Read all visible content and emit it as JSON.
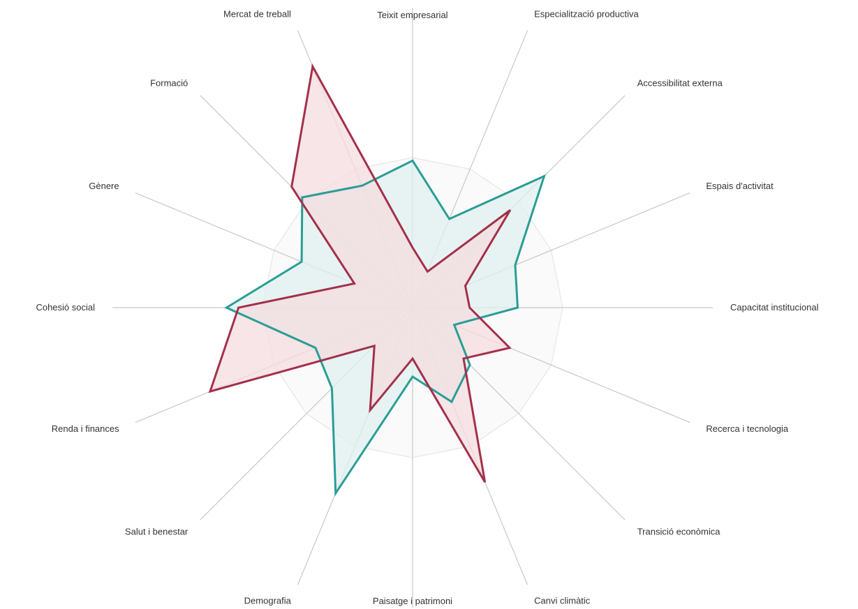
{
  "chart_data": {
    "type": "radar",
    "axes": [
      "Teixit empresarial",
      "Especialització productiva",
      "Accessibilitat externa",
      "Espais d'activitat",
      "Capacitat institucional",
      "Recerca i tecnologia",
      "Transició econòmica",
      "Canvi climàtic",
      "Paisatge i patrimoni",
      "Demografia",
      "Salut i benestar",
      "Renda i finances",
      "Cohesió social",
      "Gènere",
      "Formació",
      "Mercat de treball"
    ],
    "series": [
      {
        "values": [
          0.49,
          0.32,
          0.62,
          0.37,
          0.35,
          0.15,
          0.27,
          0.34,
          0.23,
          0.67,
          0.38,
          0.35,
          0.62,
          0.4,
          0.52,
          0.44
        ]
      },
      {
        "values": [
          0.2,
          0.13,
          0.46,
          0.19,
          0.19,
          0.35,
          0.24,
          0.63,
          0.17,
          0.37,
          0.18,
          0.73,
          0.58,
          0.21,
          0.57,
          0.87
        ]
      }
    ],
    "range": [
      0,
      1
    ],
    "grid_rings": [
      0.5
    ],
    "colors": {
      "series": [
        "#2a9d96",
        "#a3304a"
      ],
      "fills": [
        "#dff0ef",
        "#f4dcdf"
      ],
      "spokes": "#c8c8c8",
      "grid_ring": "#e6e6e6",
      "label": "#333333"
    },
    "grid": true,
    "legend": "none"
  }
}
